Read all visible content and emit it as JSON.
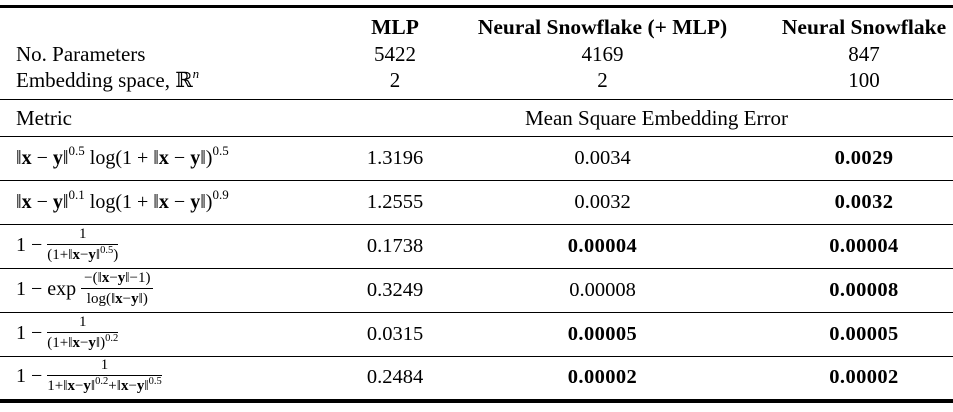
{
  "page": {
    "background_color": "#ffffff",
    "text_color": "#000000",
    "rule_color": "#000000"
  },
  "table": {
    "col_headers": {
      "mlp": "MLP",
      "neural_snowflake_mlp": "Neural Snowflake (+ MLP)",
      "neural_snowflake": "Neural Snowflake"
    },
    "param_rows": [
      {
        "label_html": "No. Parameters",
        "values": [
          "5422",
          "4169",
          "847"
        ]
      },
      {
        "label_html": "Embedding space, &#8477;<sup class='sup-it'>n</sup>",
        "values": [
          "2",
          "2",
          "100"
        ]
      }
    ],
    "metric_header": {
      "label": "Metric",
      "span_label": "Mean Square Embedding Error"
    },
    "metric_rows": [
      {
        "formula_html": "&#8214;<b>x</b> &#8722; <b>y</b>&#8214;<sup>0.5</sup> log(1 + &#8214;<b>x</b> &#8722; <b>y</b>&#8214;)<sup>0.5</sup>",
        "values": [
          {
            "text": "1.3196",
            "weight": "normal"
          },
          {
            "text": "0.0034",
            "weight": "normal"
          },
          {
            "text": "0.0029",
            "weight": "bold"
          }
        ]
      },
      {
        "formula_html": "&#8214;<b>x</b> &#8722; <b>y</b>&#8214;<sup>0.1</sup> log(1 + &#8214;<b>x</b> &#8722; <b>y</b>&#8214;)<sup>0.9</sup>",
        "values": [
          {
            "text": "1.2555",
            "weight": "normal"
          },
          {
            "text": "0.0032",
            "weight": "normal"
          },
          {
            "text": "0.0032",
            "weight": "bold"
          }
        ]
      },
      {
        "formula_html": "1 &#8722; <span class='frac'><span class='num'>1</span><span class='den'>(1+&#8214;<b>x</b>&#8722;<b>y</b>&#8214;<sup>0.5</sup>)</span></span>",
        "values": [
          {
            "text": "0.1738",
            "weight": "normal"
          },
          {
            "text": "0.00004",
            "weight": "bold"
          },
          {
            "text": "0.00004",
            "weight": "bold"
          }
        ]
      },
      {
        "formula_html": "1 &#8722; exp <span class='frac'><span class='num'>&#8722;(&#8214;<b>x</b>&#8722;<b>y</b>&#8214;&#8722;1)</span><span class='den'>log(&#8214;<b>x</b>&#8722;<b>y</b>&#8214;)</span></span>",
        "values": [
          {
            "text": "0.3249",
            "weight": "normal"
          },
          {
            "text": "0.00008",
            "weight": "normal"
          },
          {
            "text": "0.00008",
            "weight": "bold"
          }
        ]
      },
      {
        "formula_html": "1 &#8722; <span class='frac'><span class='num'>1</span><span class='den'>(1+&#8214;<b>x</b>&#8722;<b>y</b>&#8214;)<sup>0.2</sup></span></span>",
        "values": [
          {
            "text": "0.0315",
            "weight": "normal"
          },
          {
            "text": "0.00005",
            "weight": "bold"
          },
          {
            "text": "0.00005",
            "weight": "bold"
          }
        ]
      },
      {
        "formula_html": "1 &#8722; <span class='frac'><span class='num'>1</span><span class='den'>1+&#8214;<b>x</b>&#8722;<b>y</b>&#8214;<sup>0.2</sup>+&#8214;<b>x</b>&#8722;<b>y</b>&#8214;<sup>0.5</sup></span></span>",
        "values": [
          {
            "text": "0.2484",
            "weight": "normal"
          },
          {
            "text": "0.00002",
            "weight": "bold"
          },
          {
            "text": "0.00002",
            "weight": "bold"
          }
        ]
      }
    ]
  }
}
